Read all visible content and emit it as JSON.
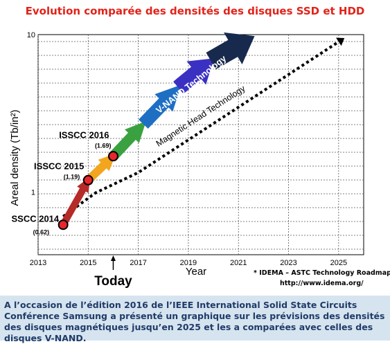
{
  "page": {
    "title": "Evolution comparée des densités des disques SSD et HDD",
    "caption": "A l’occasion de l’édition 2016 de l’IEEE International Solid State Circuits Conférence Samsung a présenté un graphique sur les prévisions des densités des disques magnétiques jusqu’en 2025 et les a comparées avec celles des disques V-NAND."
  },
  "chart_data": {
    "type": "line",
    "xlabel": "Year",
    "ylabel": "Areal density (Tb/in²)",
    "y_scale": "log",
    "xlim": [
      2013,
      2026
    ],
    "ylim": [
      0.4,
      10
    ],
    "x_ticks": [
      "2013",
      "2015",
      "2017",
      "2019",
      "2021",
      "2023",
      "2025"
    ],
    "y_ticks": [
      "1",
      "10"
    ],
    "grid": true,
    "series": [
      {
        "name": "V-NAND Technology",
        "style": "arrows",
        "color": "#c0392b",
        "points": [
          {
            "x": 2014,
            "y": 0.62,
            "label": "SSCC 2014",
            "value_label": "(0.62)"
          },
          {
            "x": 2015,
            "y": 1.19,
            "label": "ISSCC 2015",
            "value_label": "(1.19)"
          },
          {
            "x": 2016,
            "y": 1.69,
            "label": "ISSCC 2016",
            "value_label": "(1.69)"
          }
        ],
        "arrow_colors": [
          "#b52b27",
          "#f2a51d",
          "#3aa140",
          "#1e6fc4",
          "#3a31c2",
          "#172a4e"
        ]
      },
      {
        "name": "Magnetic Head Technology",
        "style": "dotted",
        "color": "#000000",
        "points": [
          {
            "x": 2014,
            "y": 0.7
          },
          {
            "x": 2015.3,
            "y": 0.99
          },
          {
            "x": 2017,
            "y": 1.33
          },
          {
            "x": 2025,
            "y": 9.0
          }
        ]
      }
    ],
    "annotations": [
      {
        "text": "Today",
        "x": 2016
      },
      {
        "text": "* IDEMA – ASTC Technology Roadmap"
      },
      {
        "text": "http://www.idema.org/"
      }
    ]
  }
}
